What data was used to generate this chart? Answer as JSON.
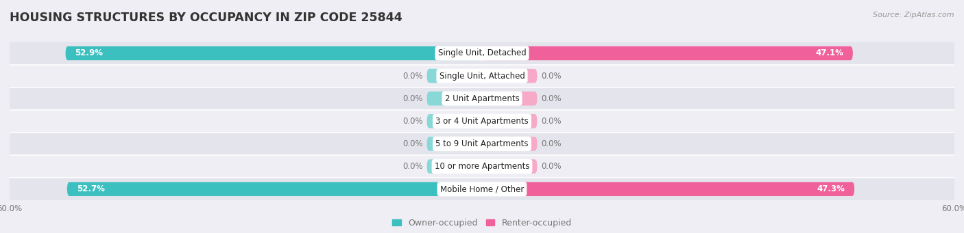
{
  "title": "HOUSING STRUCTURES BY OCCUPANCY IN ZIP CODE 25844",
  "source": "Source: ZipAtlas.com",
  "categories": [
    "Single Unit, Detached",
    "Single Unit, Attached",
    "2 Unit Apartments",
    "3 or 4 Unit Apartments",
    "5 to 9 Unit Apartments",
    "10 or more Apartments",
    "Mobile Home / Other"
  ],
  "owner_values": [
    52.9,
    0.0,
    0.0,
    0.0,
    0.0,
    0.0,
    52.7
  ],
  "renter_values": [
    47.1,
    0.0,
    0.0,
    0.0,
    0.0,
    0.0,
    47.3
  ],
  "owner_color": "#3bbfbf",
  "renter_color": "#f0609a",
  "owner_color_zero": "#88d8d8",
  "renter_color_zero": "#f7aac8",
  "bg_color": "#eeeef4",
  "row_colors": [
    "#e4e4ec",
    "#eeeef4"
  ],
  "label_color": "#777777",
  "title_color": "#333333",
  "source_color": "#999999",
  "axis_limit": 60.0,
  "zero_stub": 7.0,
  "legend_labels": [
    "Owner-occupied",
    "Renter-occupied"
  ],
  "bar_height": 0.62,
  "title_fontsize": 12.5,
  "cat_fontsize": 8.5,
  "val_fontsize": 8.5,
  "tick_fontsize": 8.5,
  "legend_fontsize": 9
}
